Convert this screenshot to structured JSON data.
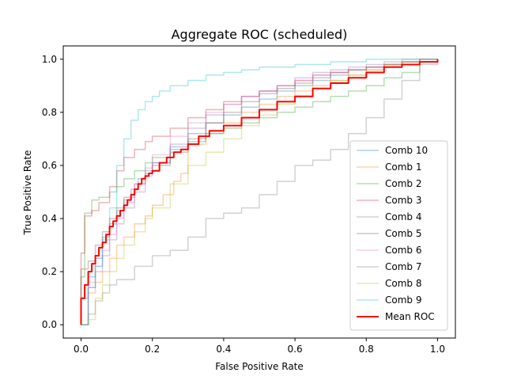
{
  "chart_data": {
    "type": "line",
    "title": "Aggregate ROC (scheduled)",
    "xlabel": "False Positive Rate",
    "ylabel": "True Positive Rate",
    "xlim": [
      -0.05,
      1.05
    ],
    "ylim": [
      -0.05,
      1.05
    ],
    "xticks": [
      "0.0",
      "0.2",
      "0.4",
      "0.6",
      "0.8",
      "1.0"
    ],
    "yticks": [
      "0.0",
      "0.2",
      "0.4",
      "0.6",
      "0.8",
      "1.0"
    ],
    "grid": false,
    "legend_position": "lower-right",
    "series": [
      {
        "name": "Comb 10",
        "color": "#1f77b4",
        "alpha": 0.35,
        "x": [
          0,
          0,
          0.02,
          0.04,
          0.06,
          0.08,
          0.1,
          0.12,
          0.14,
          0.16,
          0.18,
          0.2,
          0.25,
          0.3,
          0.35,
          0.4,
          0.45,
          0.5,
          0.55,
          0.6,
          0.65,
          0.7,
          0.75,
          0.8,
          0.85,
          0.9,
          0.95,
          1.0
        ],
        "y": [
          0,
          0.1,
          0.18,
          0.25,
          0.33,
          0.38,
          0.43,
          0.47,
          0.51,
          0.55,
          0.58,
          0.61,
          0.67,
          0.72,
          0.76,
          0.79,
          0.82,
          0.85,
          0.88,
          0.9,
          0.92,
          0.94,
          0.96,
          0.97,
          0.98,
          0.99,
          1.0,
          1.0
        ]
      },
      {
        "name": "Comb 1",
        "color": "#ff7f0e",
        "alpha": 0.35,
        "x": [
          0,
          0.02,
          0.04,
          0.06,
          0.08,
          0.1,
          0.12,
          0.15,
          0.18,
          0.2,
          0.23,
          0.26,
          0.28,
          0.3,
          0.35,
          0.4,
          0.45,
          0.5,
          0.55,
          0.6,
          0.65,
          0.7,
          0.75,
          0.8,
          0.85,
          0.9,
          0.95,
          1.0
        ],
        "y": [
          0,
          0.12,
          0.16,
          0.2,
          0.25,
          0.3,
          0.33,
          0.38,
          0.41,
          0.45,
          0.49,
          0.54,
          0.57,
          0.68,
          0.72,
          0.76,
          0.8,
          0.83,
          0.86,
          0.88,
          0.9,
          0.92,
          0.94,
          0.96,
          0.97,
          0.98,
          0.99,
          1.0
        ]
      },
      {
        "name": "Comb 2",
        "color": "#2ca02c",
        "alpha": 0.35,
        "x": [
          0,
          0,
          0.01,
          0.03,
          0.05,
          0.08,
          0.1,
          0.12,
          0.15,
          0.18,
          0.2,
          0.25,
          0.3,
          0.35,
          0.4,
          0.45,
          0.5,
          0.55,
          0.6,
          0.65,
          0.7,
          0.75,
          0.8,
          0.85,
          0.9,
          0.95,
          1.0
        ],
        "y": [
          0,
          0.18,
          0.42,
          0.47,
          0.48,
          0.5,
          0.52,
          0.55,
          0.58,
          0.61,
          0.63,
          0.66,
          0.69,
          0.72,
          0.74,
          0.76,
          0.78,
          0.8,
          0.82,
          0.84,
          0.86,
          0.88,
          0.9,
          0.93,
          0.95,
          0.99,
          1.0
        ]
      },
      {
        "name": "Comb 3",
        "color": "#d62728",
        "alpha": 0.35,
        "x": [
          0,
          0,
          0.01,
          0.03,
          0.05,
          0.08,
          0.1,
          0.12,
          0.15,
          0.18,
          0.2,
          0.25,
          0.3,
          0.35,
          0.4,
          0.45,
          0.5,
          0.55,
          0.6,
          0.65,
          0.7,
          0.75,
          0.8,
          0.85,
          0.9,
          0.95,
          1.0
        ],
        "y": [
          0,
          0.27,
          0.41,
          0.43,
          0.46,
          0.52,
          0.58,
          0.63,
          0.66,
          0.69,
          0.71,
          0.74,
          0.78,
          0.81,
          0.84,
          0.86,
          0.88,
          0.9,
          0.92,
          0.94,
          0.95,
          0.96,
          0.97,
          0.98,
          0.99,
          1.0,
          1.0
        ]
      },
      {
        "name": "Comb 4",
        "color": "#9467bd",
        "alpha": 0.35,
        "x": [
          0,
          0.02,
          0.04,
          0.06,
          0.08,
          0.1,
          0.12,
          0.15,
          0.18,
          0.2,
          0.25,
          0.3,
          0.35,
          0.4,
          0.45,
          0.5,
          0.55,
          0.6,
          0.65,
          0.7,
          0.75,
          0.8,
          0.85,
          0.9,
          0.95,
          1.0
        ],
        "y": [
          0,
          0.14,
          0.2,
          0.26,
          0.32,
          0.38,
          0.44,
          0.5,
          0.56,
          0.61,
          0.68,
          0.74,
          0.79,
          0.83,
          0.86,
          0.88,
          0.9,
          0.93,
          0.95,
          0.96,
          0.97,
          0.98,
          0.99,
          1.0,
          1.0,
          1.0
        ]
      },
      {
        "name": "Comb 5",
        "color": "#8c564b",
        "alpha": 0.35,
        "x": [
          0,
          0,
          0.02,
          0.04,
          0.06,
          0.08,
          0.1,
          0.12,
          0.15,
          0.18,
          0.2,
          0.25,
          0.3,
          0.35,
          0.4,
          0.45,
          0.5,
          0.55,
          0.6,
          0.65,
          0.7,
          0.75,
          0.8,
          0.85,
          0.9,
          0.95,
          1.0
        ],
        "y": [
          0,
          0.21,
          0.24,
          0.3,
          0.35,
          0.4,
          0.44,
          0.48,
          0.53,
          0.57,
          0.6,
          0.65,
          0.7,
          0.76,
          0.8,
          0.84,
          0.87,
          0.89,
          0.91,
          0.93,
          0.95,
          0.96,
          0.97,
          0.98,
          0.99,
          1.0,
          1.0
        ]
      },
      {
        "name": "Comb 6",
        "color": "#e377c2",
        "alpha": 0.35,
        "x": [
          0,
          0.02,
          0.04,
          0.06,
          0.08,
          0.1,
          0.12,
          0.15,
          0.18,
          0.2,
          0.25,
          0.3,
          0.35,
          0.4,
          0.45,
          0.5,
          0.55,
          0.6,
          0.65,
          0.7,
          0.75,
          0.8,
          0.85,
          0.9,
          0.95,
          1.0
        ],
        "y": [
          0,
          0.16,
          0.22,
          0.28,
          0.34,
          0.4,
          0.46,
          0.53,
          0.59,
          0.64,
          0.71,
          0.76,
          0.8,
          0.83,
          0.86,
          0.88,
          0.9,
          0.92,
          0.94,
          0.95,
          0.96,
          0.97,
          0.98,
          0.99,
          1.0,
          1.0
        ]
      },
      {
        "name": "Comb 7",
        "color": "#7f7f7f",
        "alpha": 0.35,
        "x": [
          0,
          0.02,
          0.04,
          0.06,
          0.08,
          0.1,
          0.15,
          0.2,
          0.25,
          0.3,
          0.35,
          0.4,
          0.45,
          0.5,
          0.55,
          0.6,
          0.65,
          0.7,
          0.75,
          0.8,
          0.85,
          0.9,
          0.95,
          1.0
        ],
        "y": [
          0,
          0.04,
          0.09,
          0.12,
          0.15,
          0.17,
          0.22,
          0.26,
          0.28,
          0.33,
          0.4,
          0.42,
          0.44,
          0.49,
          0.54,
          0.6,
          0.62,
          0.66,
          0.72,
          0.78,
          0.85,
          0.92,
          0.98,
          1.0
        ]
      },
      {
        "name": "Comb 8",
        "color": "#bcbd22",
        "alpha": 0.35,
        "x": [
          0,
          0.02,
          0.04,
          0.06,
          0.08,
          0.1,
          0.12,
          0.15,
          0.18,
          0.2,
          0.25,
          0.3,
          0.35,
          0.4,
          0.45,
          0.5,
          0.55,
          0.6,
          0.65,
          0.7,
          0.75,
          0.8,
          0.85,
          0.9,
          0.95,
          1.0
        ],
        "y": [
          0,
          0.02,
          0.1,
          0.15,
          0.2,
          0.25,
          0.3,
          0.35,
          0.4,
          0.44,
          0.53,
          0.6,
          0.65,
          0.7,
          0.75,
          0.79,
          0.83,
          0.86,
          0.89,
          0.92,
          0.94,
          0.96,
          0.98,
          0.99,
          1.0,
          1.0
        ]
      },
      {
        "name": "Comb 9",
        "color": "#17becf",
        "alpha": 0.35,
        "x": [
          0,
          0.02,
          0.04,
          0.06,
          0.08,
          0.1,
          0.12,
          0.14,
          0.16,
          0.18,
          0.2,
          0.22,
          0.25,
          0.3,
          0.35,
          0.4,
          0.45,
          0.5,
          0.55,
          0.6,
          0.65,
          0.7,
          0.75,
          0.8,
          0.85,
          0.9,
          0.95,
          1.0
        ],
        "y": [
          0,
          0.14,
          0.22,
          0.32,
          0.44,
          0.6,
          0.7,
          0.77,
          0.81,
          0.84,
          0.86,
          0.88,
          0.9,
          0.92,
          0.94,
          0.95,
          0.96,
          0.97,
          0.97,
          0.98,
          0.98,
          0.99,
          0.99,
          1.0,
          1.0,
          1.0,
          1.0,
          1.0
        ]
      },
      {
        "name": "Mean ROC",
        "color": "#ff0000",
        "alpha": 1.0,
        "width": 2,
        "x": [
          0,
          0,
          0.01,
          0.02,
          0.03,
          0.04,
          0.05,
          0.06,
          0.07,
          0.08,
          0.09,
          0.1,
          0.11,
          0.12,
          0.13,
          0.14,
          0.15,
          0.16,
          0.17,
          0.18,
          0.19,
          0.2,
          0.22,
          0.24,
          0.26,
          0.28,
          0.3,
          0.33,
          0.36,
          0.4,
          0.45,
          0.5,
          0.55,
          0.6,
          0.65,
          0.7,
          0.75,
          0.8,
          0.85,
          0.9,
          0.95,
          1.0
        ],
        "y": [
          0,
          0.1,
          0.15,
          0.2,
          0.23,
          0.26,
          0.29,
          0.31,
          0.34,
          0.37,
          0.39,
          0.41,
          0.43,
          0.45,
          0.47,
          0.49,
          0.51,
          0.53,
          0.55,
          0.56,
          0.57,
          0.58,
          0.61,
          0.63,
          0.65,
          0.66,
          0.68,
          0.71,
          0.73,
          0.75,
          0.78,
          0.81,
          0.84,
          0.86,
          0.89,
          0.91,
          0.93,
          0.95,
          0.97,
          0.98,
          0.99,
          1.0
        ]
      }
    ]
  }
}
